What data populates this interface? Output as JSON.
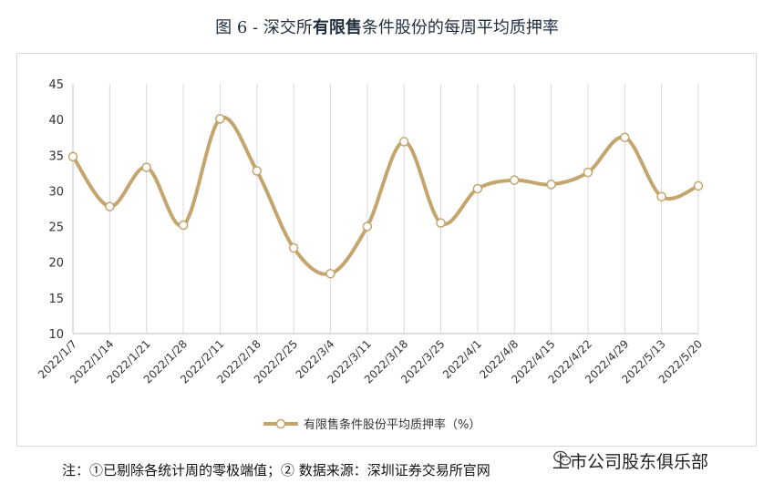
{
  "title": {
    "prefix": "图 6 - 深交所",
    "bold": "有限售",
    "suffix": "条件股份的每周平均质押率"
  },
  "chart_data": {
    "type": "line",
    "categories": [
      "2022/1/7",
      "2022/1/14",
      "2022/1/21",
      "2022/1/28",
      "2022/2/11",
      "2022/2/18",
      "2022/2/25",
      "2022/3/4",
      "2022/3/11",
      "2022/3/18",
      "2022/3/25",
      "2022/4/1",
      "2022/4/8",
      "2022/4/15",
      "2022/4/22",
      "2022/4/29",
      "2022/5/13",
      "2022/5/20"
    ],
    "series": [
      {
        "name": "有限售条件股份平均质押率（%）",
        "values": [
          34.8,
          27.8,
          33.3,
          25.2,
          40.1,
          32.8,
          22.0,
          18.4,
          25.0,
          36.9,
          25.5,
          30.3,
          31.5,
          30.9,
          32.6,
          37.5,
          29.2,
          30.7
        ]
      }
    ],
    "ylim": [
      10,
      45
    ],
    "yticks": [
      10,
      15,
      20,
      25,
      30,
      35,
      40,
      45
    ],
    "grid": "vertical",
    "legend": "bottom",
    "line_color": "#c3a56d",
    "marker_fill": "#ffffff"
  },
  "footer": {
    "note": "注：①已剔除各统计周的零极端值；② 数据来源：深圳证券交易所官网"
  },
  "watermark": {
    "text": "上市公司股东俱乐部",
    "icon": "wechat-icon"
  }
}
